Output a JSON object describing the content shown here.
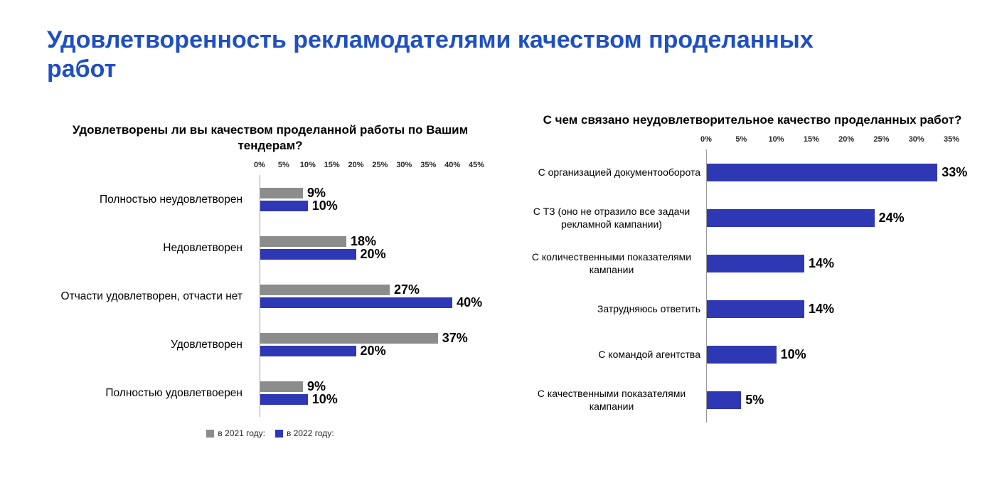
{
  "page": {
    "title": "Удовлетворенность рекламодателями качеством проделанных работ"
  },
  "colors": {
    "title_blue": "#1E4FC4",
    "bar_gray": "#8C8C8C",
    "bar_blue": "#2F38B4",
    "axis_line": "#9B9B9B"
  },
  "chart_data": [
    {
      "type": "bar",
      "orientation": "horizontal",
      "title": "Удовлетворены ли вы качеством проделанной работы по Вашим тендерам?",
      "categories": [
        "Полностью неудовлетворен",
        "Недовлетворен",
        "Отчасти удовлетворен, отчасти нет",
        "Удовлетворен",
        "Полностью удовлетвоерен"
      ],
      "series": [
        {
          "name": "в 2021 году:",
          "color": "#8C8C8C",
          "values": [
            9,
            18,
            27,
            37,
            9
          ]
        },
        {
          "name": "в 2022 году:",
          "color": "#2F38B4",
          "values": [
            10,
            20,
            40,
            20,
            10
          ]
        }
      ],
      "xlim": [
        0,
        45
      ],
      "ticks": [
        "0%",
        "5%",
        "10%",
        "15%",
        "20%",
        "25%",
        "30%",
        "35%",
        "40%",
        "45%"
      ],
      "value_suffix": "%",
      "grid": false,
      "legend_position": "bottom"
    },
    {
      "type": "bar",
      "orientation": "horizontal",
      "title": "С чем связано неудовлетворительное качество проделанных работ?",
      "categories": [
        "С организацией документооборота",
        "С ТЗ (оно не отразило все задачи рекламной кампании)",
        "С количественными показателями кампании",
        "Затрудняюсь ответить",
        "С командой агентства",
        "С качественными показателями кампании"
      ],
      "values": [
        33,
        24,
        14,
        14,
        10,
        5
      ],
      "bar_color": "#2F38B4",
      "xlim": [
        0,
        35
      ],
      "ticks": [
        "0%",
        "5%",
        "10%",
        "15%",
        "20%",
        "25%",
        "30%",
        "35%"
      ],
      "value_suffix": "%",
      "grid": false,
      "legend_position": "none"
    }
  ]
}
